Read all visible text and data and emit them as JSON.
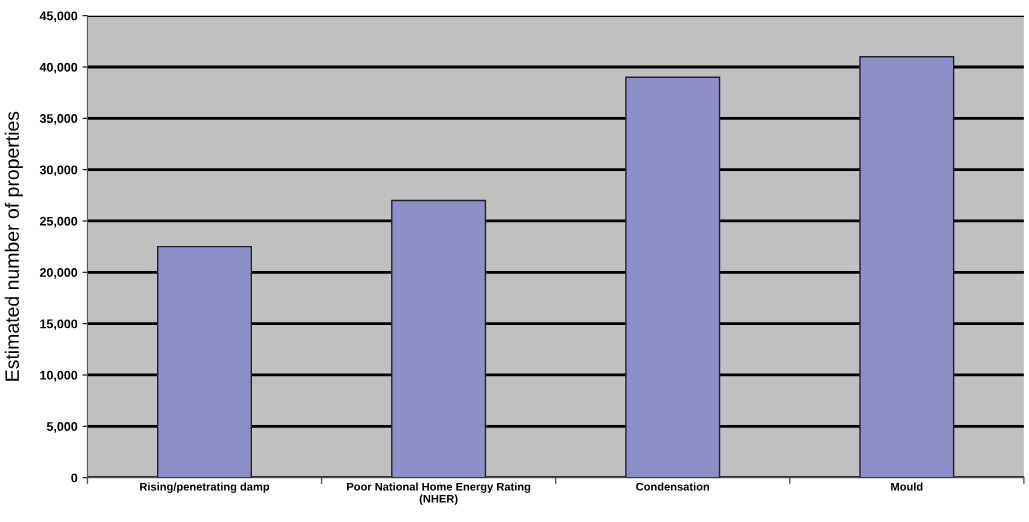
{
  "chart_data": {
    "type": "bar",
    "ylabel": "Estimated number of properties",
    "categories": [
      "Rising/penetrating damp",
      "Poor National Home Energy Rating\n(NHER)",
      "Condensation",
      "Mould"
    ],
    "values": [
      22500,
      27000,
      39000,
      41000
    ],
    "color": "#8c8fc8",
    "ylim": [
      0,
      45000
    ],
    "yticks": [
      {
        "value": 0,
        "label": "0"
      },
      {
        "value": 5000,
        "label": "5,000"
      },
      {
        "value": 10000,
        "label": "10,000"
      },
      {
        "value": 15000,
        "label": "15,000"
      },
      {
        "value": 20000,
        "label": "20,000"
      },
      {
        "value": 25000,
        "label": "25,000"
      },
      {
        "value": 30000,
        "label": "30,000"
      },
      {
        "value": 35000,
        "label": "35,000"
      },
      {
        "value": 40000,
        "label": "40,000"
      },
      {
        "value": 45000,
        "label": "45,000"
      }
    ],
    "grid": "y"
  }
}
